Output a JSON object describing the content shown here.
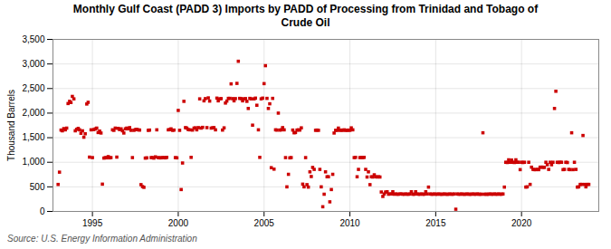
{
  "chart_data": {
    "type": "scatter",
    "title": "Monthly Gulf Coast (PADD 3) Imports by PADD of Processing from Trinidad and Tobago of\nCrude Oil",
    "ylabel": "Thousand Barrels",
    "source": "Source: U.S. Energy Information Administration",
    "color": "#cc0000",
    "marker": "square",
    "grid": true,
    "xlim": [
      1992.7,
      2024.5
    ],
    "xticks": [
      1995,
      2000,
      2005,
      2010,
      2015,
      2020
    ],
    "ylim": [
      0,
      3500
    ],
    "yticks": [
      0,
      500,
      {
        "value": 1000,
        "label": "1,000"
      },
      {
        "value": 1500,
        "label": "1,500"
      },
      {
        "value": 2000,
        "label": "2,000"
      },
      {
        "value": 2500,
        "label": "2,500"
      },
      {
        "value": 3000,
        "label": "3,000"
      },
      {
        "value": 3500,
        "label": "3,500"
      }
    ],
    "x": [
      1993.0,
      1993.08,
      1993.17,
      1993.25,
      1993.33,
      1993.42,
      1993.5,
      1993.58,
      1993.67,
      1993.75,
      1993.83,
      1993.92,
      1994.0,
      1994.08,
      1994.17,
      1994.25,
      1994.33,
      1994.42,
      1994.5,
      1994.58,
      1994.67,
      1994.75,
      1994.83,
      1994.92,
      1995.0,
      1995.08,
      1995.17,
      1995.25,
      1995.33,
      1995.42,
      1995.5,
      1995.58,
      1995.67,
      1995.75,
      1995.83,
      1995.92,
      1996.0,
      1996.08,
      1996.17,
      1996.25,
      1996.33,
      1996.42,
      1996.5,
      1996.58,
      1996.67,
      1996.75,
      1996.83,
      1996.92,
      1997.0,
      1997.08,
      1997.17,
      1997.25,
      1997.33,
      1997.42,
      1997.5,
      1997.58,
      1997.67,
      1997.75,
      1997.83,
      1997.92,
      1998.0,
      1998.08,
      1998.17,
      1998.25,
      1998.33,
      1998.42,
      1998.5,
      1998.58,
      1998.67,
      1998.75,
      1998.83,
      1998.92,
      1999.0,
      1999.08,
      1999.17,
      1999.25,
      1999.33,
      1999.42,
      1999.5,
      1999.58,
      1999.67,
      1999.75,
      1999.83,
      1999.92,
      2000.0,
      2000.08,
      2000.17,
      2000.25,
      2000.33,
      2000.42,
      2000.5,
      2000.58,
      2000.67,
      2000.75,
      2000.83,
      2000.92,
      2001.0,
      2001.08,
      2001.17,
      2001.25,
      2001.33,
      2001.42,
      2001.5,
      2001.58,
      2001.67,
      2001.75,
      2001.83,
      2001.92,
      2002.0,
      2002.08,
      2002.17,
      2002.25,
      2002.33,
      2002.42,
      2002.5,
      2002.58,
      2002.67,
      2002.75,
      2002.83,
      2002.92,
      2003.0,
      2003.08,
      2003.17,
      2003.25,
      2003.33,
      2003.42,
      2003.5,
      2003.58,
      2003.67,
      2003.75,
      2003.83,
      2003.92,
      2004.0,
      2004.08,
      2004.17,
      2004.25,
      2004.33,
      2004.42,
      2004.5,
      2004.58,
      2004.67,
      2004.75,
      2004.83,
      2004.92,
      2005.0,
      2005.08,
      2005.17,
      2005.25,
      2005.33,
      2005.42,
      2005.5,
      2005.58,
      2005.67,
      2005.75,
      2005.83,
      2005.92,
      2006.0,
      2006.08,
      2006.17,
      2006.25,
      2006.33,
      2006.42,
      2006.5,
      2006.58,
      2006.67,
      2006.75,
      2006.83,
      2006.92,
      2007.0,
      2007.08,
      2007.17,
      2007.25,
      2007.33,
      2007.42,
      2007.5,
      2007.58,
      2007.67,
      2007.75,
      2007.83,
      2007.92,
      2008.0,
      2008.08,
      2008.17,
      2008.25,
      2008.33,
      2008.42,
      2008.5,
      2008.58,
      2008.67,
      2008.75,
      2008.83,
      2008.92,
      2009.0,
      2009.08,
      2009.17,
      2009.25,
      2009.33,
      2009.42,
      2009.5,
      2009.58,
      2009.67,
      2009.75,
      2009.83,
      2009.92,
      2010.0,
      2010.08,
      2010.17,
      2010.25,
      2010.33,
      2010.42,
      2010.5,
      2010.58,
      2010.67,
      2010.75,
      2010.83,
      2010.92,
      2011.0,
      2011.08,
      2011.17,
      2011.25,
      2011.33,
      2011.42,
      2011.5,
      2011.58,
      2011.67,
      2011.75,
      2011.83,
      2011.92,
      2012.0,
      2012.08,
      2012.17,
      2012.25,
      2012.33,
      2012.42,
      2012.5,
      2012.58,
      2012.67,
      2012.75,
      2012.83,
      2012.92,
      2013.0,
      2013.08,
      2013.17,
      2013.25,
      2013.33,
      2013.42,
      2013.5,
      2013.58,
      2013.67,
      2013.75,
      2013.83,
      2013.92,
      2014.0,
      2014.08,
      2014.17,
      2014.25,
      2014.33,
      2014.42,
      2014.5,
      2014.58,
      2014.67,
      2014.75,
      2014.83,
      2014.92,
      2015.0,
      2015.08,
      2015.17,
      2015.25,
      2015.33,
      2015.42,
      2015.5,
      2015.58,
      2015.67,
      2015.75,
      2015.83,
      2015.92,
      2016.0,
      2016.08,
      2016.17,
      2016.25,
      2016.33,
      2016.42,
      2016.5,
      2016.58,
      2016.67,
      2016.75,
      2016.83,
      2016.92,
      2017.0,
      2017.08,
      2017.17,
      2017.25,
      2017.33,
      2017.42,
      2017.5,
      2017.58,
      2017.67,
      2017.75,
      2017.83,
      2017.92,
      2018.0,
      2018.08,
      2018.17,
      2018.25,
      2018.33,
      2018.42,
      2018.5,
      2018.58,
      2018.67,
      2018.75,
      2018.83,
      2018.92,
      2019.0,
      2019.08,
      2019.17,
      2019.25,
      2019.33,
      2019.42,
      2019.5,
      2019.58,
      2019.67,
      2019.75,
      2019.83,
      2019.92,
      2020.0,
      2020.08,
      2020.17,
      2020.25,
      2020.33,
      2020.42,
      2020.5,
      2020.58,
      2020.67,
      2020.75,
      2020.83,
      2020.92,
      2021.0,
      2021.08,
      2021.17,
      2021.25,
      2021.33,
      2021.42,
      2021.5,
      2021.58,
      2021.67,
      2021.75,
      2021.83,
      2021.92,
      2022.0,
      2022.08,
      2022.17,
      2022.25,
      2022.33,
      2022.42,
      2022.5,
      2022.58,
      2022.67,
      2022.75,
      2022.83,
      2022.92,
      2023.0,
      2023.08,
      2023.17,
      2023.25,
      2023.33,
      2023.42,
      2023.5,
      2023.58,
      2023.67,
      2023.75,
      2023.83,
      2023.92
    ],
    "values": [
      549,
      799,
      1655,
      1640,
      1685,
      1660,
      1695,
      2195,
      2240,
      2215,
      2340,
      2290,
      1640,
      1670,
      1690,
      1660,
      1590,
      1640,
      1510,
      1580,
      2185,
      2220,
      1105,
      1660,
      1095,
      1665,
      1680,
      1695,
      1605,
      1635,
      1595,
      555,
      1085,
      1095,
      1090,
      1115,
      1090,
      1095,
      1660,
      1650,
      1695,
      1105,
      1690,
      1665,
      1680,
      1640,
      1595,
      1680,
      1695,
      1680,
      1705,
      1650,
      1095,
      1650,
      1665,
      1670,
      1660,
      1655,
      545,
      505,
      490,
      1085,
      1090,
      1650,
      1655,
      1095,
      1095,
      1085,
      1110,
      1660,
      1095,
      1090,
      1090,
      1095,
      1095,
      1090,
      1100,
      1660,
      1665,
      1680,
      1650,
      1655,
      1095,
      1090,
      2055,
      1650,
      445,
      985,
      2240,
      1705,
      1695,
      1665,
      1660,
      1100,
      1655,
      1695,
      1700,
      1660,
      1705,
      2290,
      1695,
      1710,
      2250,
      2295,
      1705,
      2310,
      2245,
      1695,
      1700,
      1705,
      1660,
      2305,
      2250,
      2290,
      2295,
      1655,
      1700,
      2205,
      2245,
      2300,
      2300,
      2595,
      2295,
      2250,
      2295,
      2605,
      3055,
      2300,
      2295,
      2250,
      2290,
      2295,
      2240,
      2095,
      2300,
      2290,
      1755,
      2290,
      2305,
      2160,
      1660,
      1100,
      2290,
      2305,
      2600,
      2965,
      2300,
      2095,
      2190,
      890,
      2300,
      860,
      1660,
      1655,
      2000,
      1655,
      1660,
      1705,
      1660,
      1095,
      500,
      755,
      1090,
      1095,
      1655,
      1600,
      1605,
      1655,
      1660,
      1655,
      1700,
      555,
      500,
      1095,
      545,
      495,
      805,
      710,
      895,
      855,
      1650,
      1655,
      1650,
      855,
      500,
      95,
      350,
      805,
      705,
      705,
      195,
      445,
      755,
      1595,
      1650,
      1650,
      1695,
      1650,
      1655,
      1650,
      1660,
      1650,
      1650,
      1655,
      1650,
      1700,
      1660,
      1095,
      1100,
      705,
      855,
      1095,
      1100,
      1095,
      1100,
      855,
      700,
      805,
      545,
      705,
      700,
      745,
      705,
      700,
      705,
      700,
      395,
      305,
      355,
      395,
      400,
      350,
      355,
      355,
      400,
      350,
      355,
      350,
      350,
      355,
      355,
      350,
      350,
      355,
      350,
      350,
      355,
      400,
      350,
      350,
      400,
      355,
      350,
      350,
      355,
      350,
      350,
      400,
      355,
      495,
      355,
      350,
      350,
      355,
      350,
      350,
      355,
      350,
      350,
      350,
      355,
      350,
      350,
      350,
      355,
      350,
      350,
      355,
      45,
      355,
      350,
      350,
      355,
      350,
      350,
      350,
      355,
      350,
      350,
      350,
      355,
      350,
      350,
      355,
      350,
      350,
      350,
      1600,
      350,
      350,
      350,
      350,
      355,
      350,
      350,
      355,
      350,
      350,
      355,
      350,
      350,
      355,
      495,
      1000,
      995,
      1050,
      1000,
      1045,
      1000,
      995,
      1050,
      1000,
      1000,
      850,
      1000,
      995,
      1000,
      495,
      500,
      1000,
      550,
      900,
      855,
      850,
      850,
      855,
      850,
      900,
      900,
      900,
      895,
      1000,
      950,
      855,
      1000,
      950,
      1000,
      2095,
      2445,
      1000,
      995,
      1000,
      1000,
      850,
      855,
      1000,
      995,
      855,
      850,
      1600,
      850,
      1000,
      855,
      495,
      500,
      550,
      550,
      1545,
      550,
      500,
      550,
      550
    ]
  }
}
